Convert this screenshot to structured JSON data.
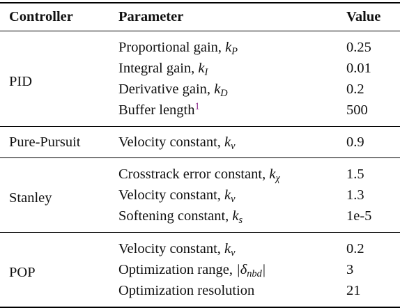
{
  "headers": {
    "controller": "Controller",
    "parameter": "Parameter",
    "value": "Value"
  },
  "groups": [
    {
      "controller": "PID",
      "rows": [
        {
          "label": "Proportional gain, ",
          "sym": "k",
          "sub": "P",
          "value": "0.25"
        },
        {
          "label": "Integral gain, ",
          "sym": "k",
          "sub": "I",
          "value": "0.01"
        },
        {
          "label": "Derivative gain, ",
          "sym": "k",
          "sub": "D",
          "value": "0.2"
        },
        {
          "label": "Buffer length",
          "footnote": "1",
          "value": "500"
        }
      ]
    },
    {
      "controller": "Pure-Pursuit",
      "rows": [
        {
          "label": "Velocity constant, ",
          "sym": "k",
          "sub": "v",
          "value": "0.9"
        }
      ]
    },
    {
      "controller": "Stanley",
      "rows": [
        {
          "label": "Crosstrack error constant, ",
          "sym": "k",
          "sub": "χ",
          "value": "1.5"
        },
        {
          "label": "Velocity constant, ",
          "sym": "k",
          "sub": "v",
          "value": "1.3"
        },
        {
          "label": "Softening constant, ",
          "sym": "k",
          "sub": "s",
          "value": "1e-5"
        }
      ]
    },
    {
      "controller": "POP",
      "rows": [
        {
          "label": "Velocity constant, ",
          "sym": "k",
          "sub": "v",
          "value": "0.2"
        },
        {
          "label": "Optimization range, ",
          "sym": "|δ",
          "sub": "nbd",
          "sym_after": "|",
          "value": "3"
        },
        {
          "label": "Optimization resolution",
          "value": "21"
        }
      ]
    }
  ]
}
